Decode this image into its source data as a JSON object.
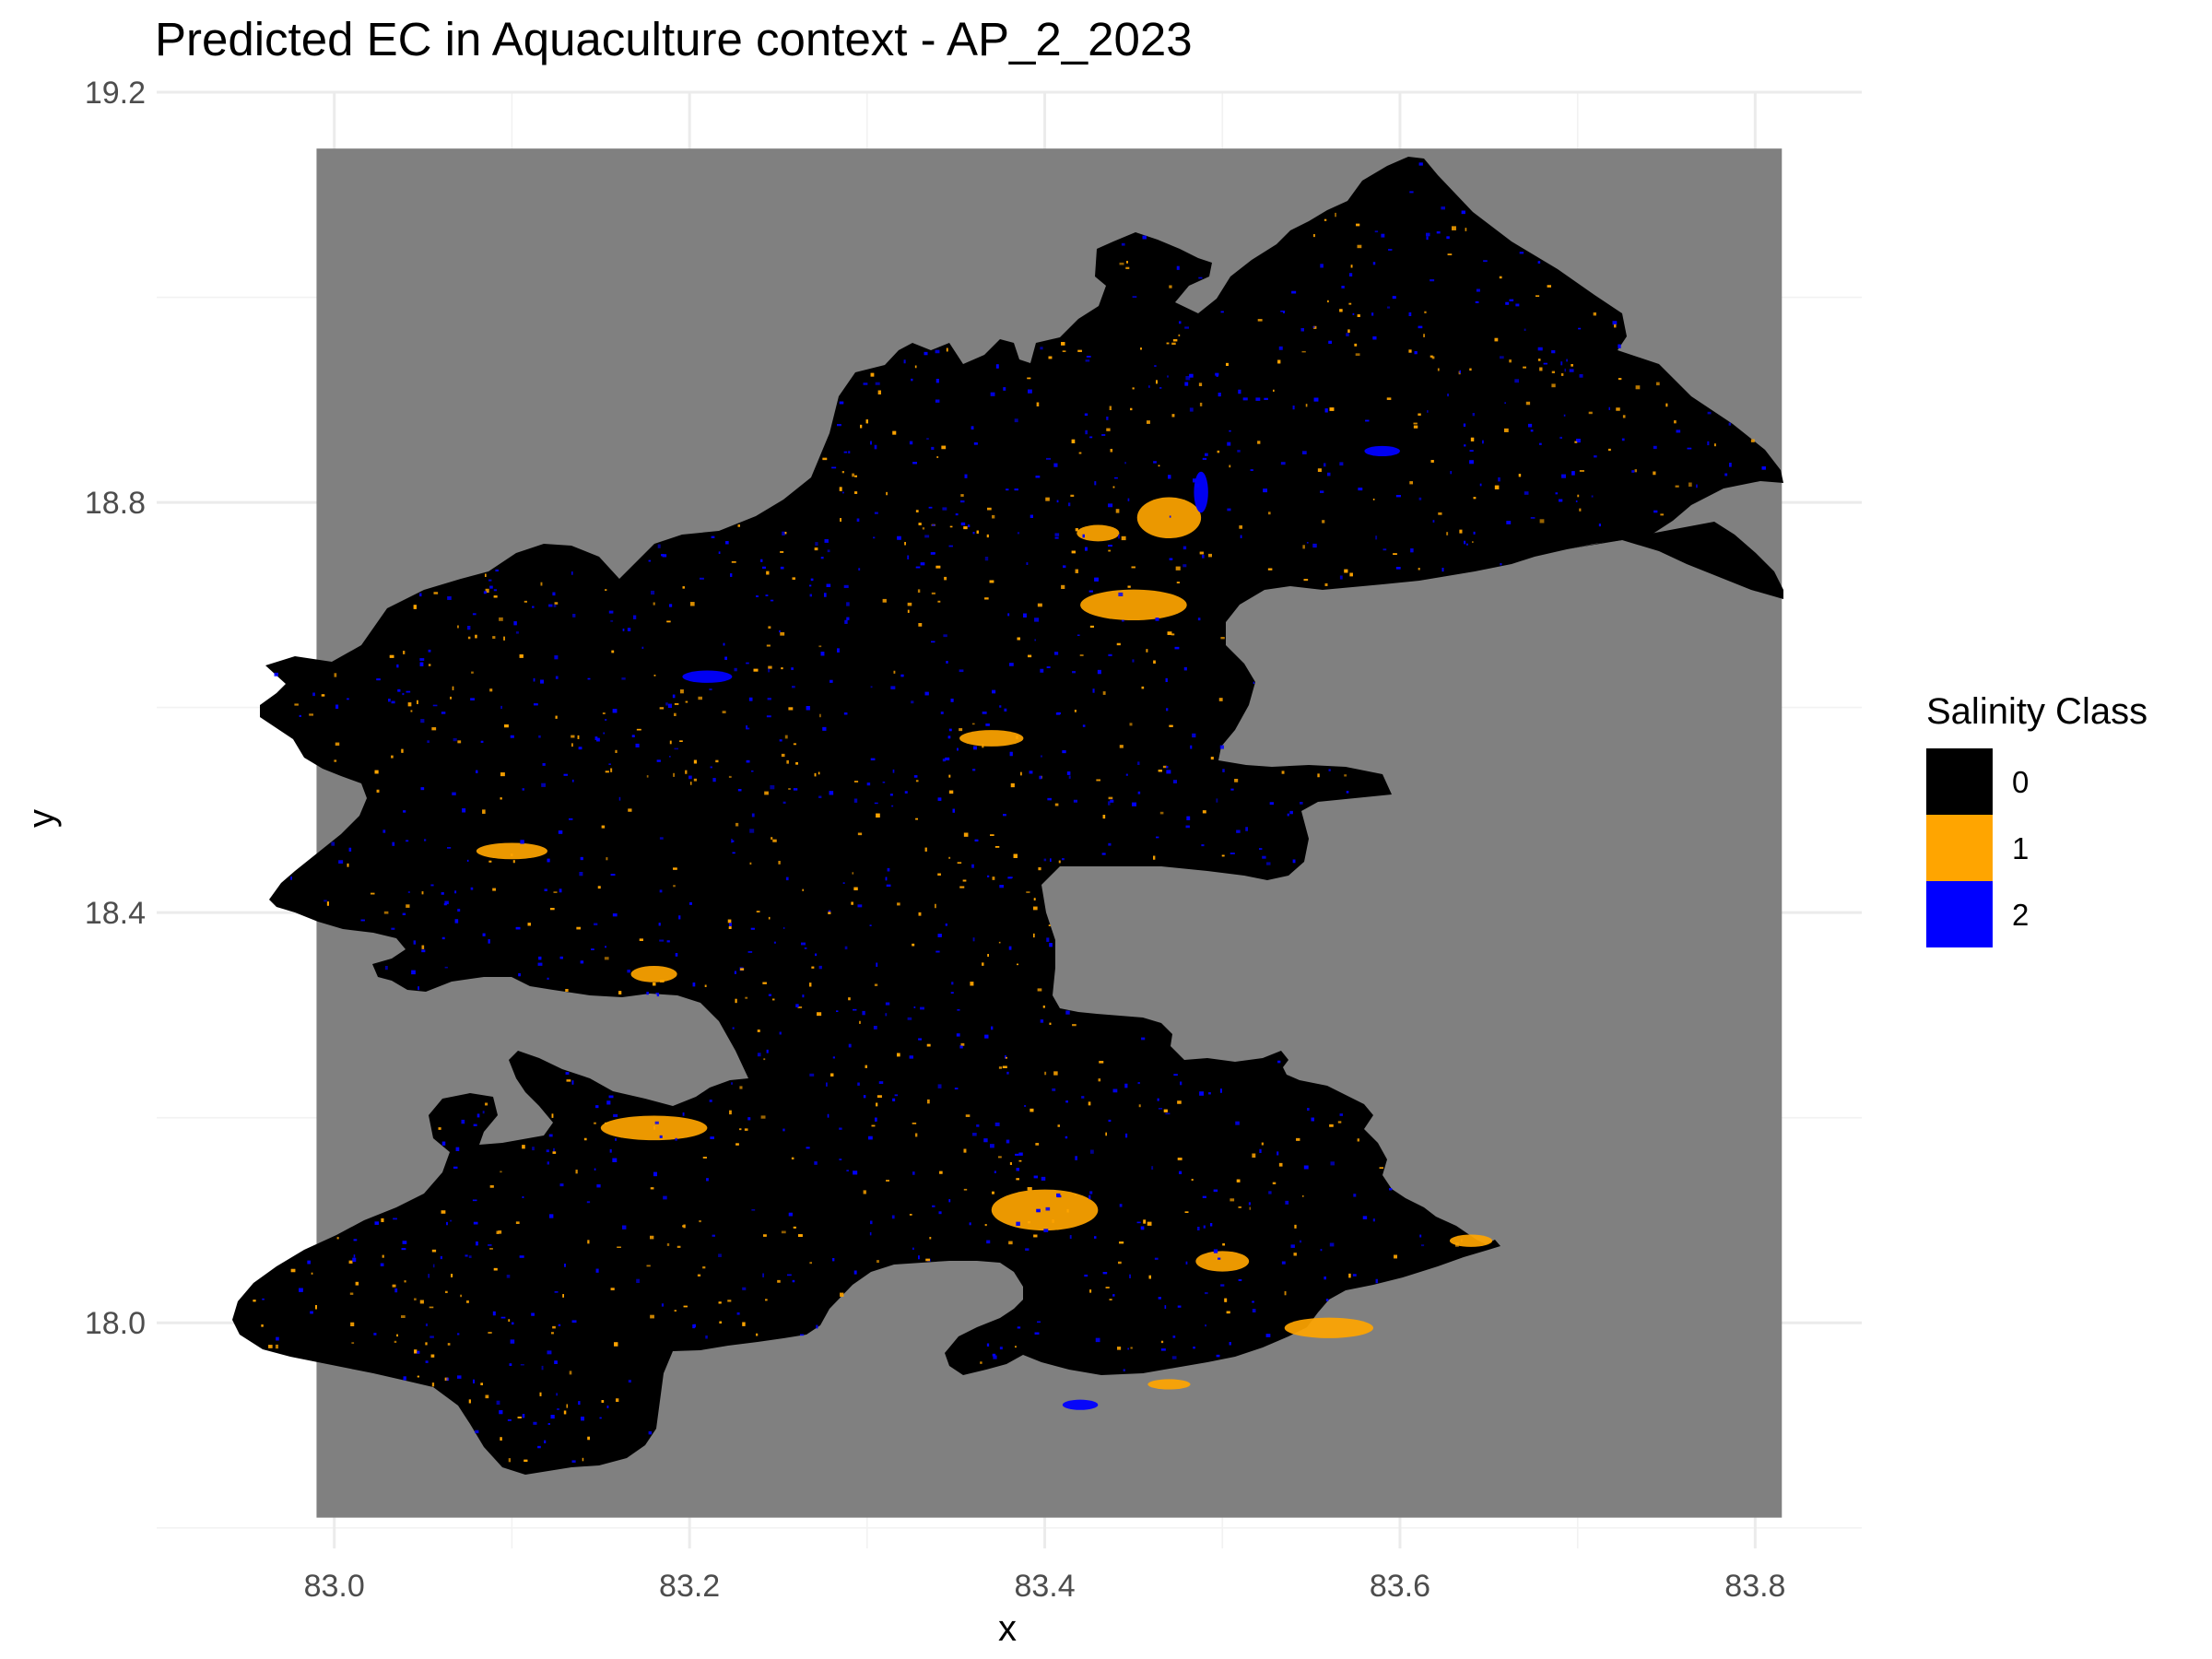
{
  "title": "Predicted EC in Aquaculture context - AP_2_2023",
  "axes": {
    "xlabel": "x",
    "ylabel": "y",
    "x_ticks": [
      {
        "value": 83.0,
        "label": "83.0"
      },
      {
        "value": 83.2,
        "label": "83.2"
      },
      {
        "value": 83.4,
        "label": "83.4"
      },
      {
        "value": 83.6,
        "label": "83.6"
      },
      {
        "value": 83.8,
        "label": "83.8"
      }
    ],
    "y_ticks": [
      {
        "value": 18.0,
        "label": "18.0"
      },
      {
        "value": 18.4,
        "label": "18.4"
      },
      {
        "value": 18.8,
        "label": "18.8"
      },
      {
        "value": 19.2,
        "label": "19.2"
      }
    ],
    "x_minor": [
      83.1,
      83.3,
      83.5,
      83.7
    ],
    "y_minor": [
      17.8,
      18.2,
      18.6,
      19.0
    ],
    "xlim": [
      82.9,
      83.86
    ],
    "ylim": [
      17.78,
      19.2
    ]
  },
  "raster": {
    "extent_x": [
      82.99,
      83.815
    ],
    "extent_y": [
      17.81,
      19.145
    ],
    "nodata_color": "#808080"
  },
  "legend": {
    "title": "Salinity Class",
    "position": "right",
    "items": [
      {
        "label": "0",
        "color": "#000000"
      },
      {
        "label": "1",
        "color": "#FFA500"
      },
      {
        "label": "2",
        "color": "#0000FF"
      }
    ]
  },
  "chart_data": {
    "type": "heatmap",
    "title": "Predicted EC in Aquaculture context - AP_2_2023",
    "xlabel": "x",
    "ylabel": "y",
    "xlim": [
      82.9,
      83.86
    ],
    "ylim": [
      17.78,
      19.2
    ],
    "grid": true,
    "legend_placement": "right",
    "categories": [
      "0",
      "1",
      "2"
    ],
    "category_colors": [
      "#000000",
      "#FFA500",
      "#0000FF"
    ],
    "class_1_clusters": [
      {
        "x": 83.47,
        "y": 18.785,
        "rx": 0.018,
        "ry": 0.02
      },
      {
        "x": 83.45,
        "y": 18.7,
        "rx": 0.03,
        "ry": 0.015
      },
      {
        "x": 83.4,
        "y": 18.11,
        "rx": 0.03,
        "ry": 0.02
      },
      {
        "x": 83.37,
        "y": 18.57,
        "rx": 0.018,
        "ry": 0.008
      },
      {
        "x": 83.18,
        "y": 18.19,
        "rx": 0.03,
        "ry": 0.012
      },
      {
        "x": 83.1,
        "y": 18.46,
        "rx": 0.02,
        "ry": 0.008
      },
      {
        "x": 83.18,
        "y": 18.34,
        "rx": 0.013,
        "ry": 0.008
      },
      {
        "x": 83.56,
        "y": 17.995,
        "rx": 0.025,
        "ry": 0.01
      },
      {
        "x": 83.64,
        "y": 18.08,
        "rx": 0.012,
        "ry": 0.006
      },
      {
        "x": 83.43,
        "y": 18.77,
        "rx": 0.012,
        "ry": 0.008
      },
      {
        "x": 83.5,
        "y": 18.06,
        "rx": 0.015,
        "ry": 0.01
      },
      {
        "x": 83.47,
        "y": 17.94,
        "rx": 0.012,
        "ry": 0.005
      }
    ],
    "class_2_clusters": [
      {
        "x": 83.21,
        "y": 18.63,
        "rx": 0.014,
        "ry": 0.006
      },
      {
        "x": 83.59,
        "y": 18.85,
        "rx": 0.01,
        "ry": 0.005
      },
      {
        "x": 83.488,
        "y": 18.81,
        "rx": 0.004,
        "ry": 0.02
      },
      {
        "x": 83.42,
        "y": 17.92,
        "rx": 0.01,
        "ry": 0.005
      }
    ]
  }
}
